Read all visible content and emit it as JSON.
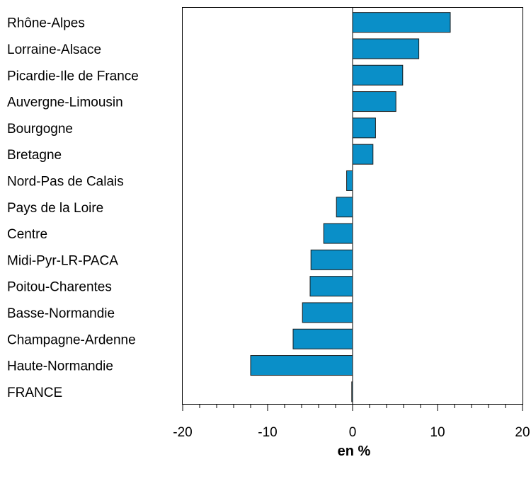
{
  "chart_data": {
    "type": "bar",
    "orientation": "horizontal",
    "categories": [
      "Rhône-Alpes",
      "Lorraine-Alsace",
      "Picardie-Ile de France",
      "Auvergne-Limousin",
      "Bourgogne",
      "Bretagne",
      "Nord-Pas de Calais",
      "Pays de la Loire",
      "Centre",
      "Midi-Pyr-LR-PACA",
      "Poitou-Charentes",
      "Basse-Normandie",
      "Champagne-Ardenne",
      "Haute-Normandie",
      "FRANCE"
    ],
    "values": [
      11.5,
      7.8,
      5.9,
      5.1,
      2.7,
      2.4,
      -0.7,
      -1.9,
      -3.4,
      -4.9,
      -5.0,
      -5.9,
      -7.0,
      -12.0,
      -0.1
    ],
    "title": "",
    "xlabel": "en %",
    "ylabel": "",
    "xlim": [
      -20,
      20
    ],
    "xticks": [
      -20,
      -10,
      0,
      10,
      20
    ],
    "minor_tick_step": 2,
    "grid": false,
    "legend": "none",
    "colors": {
      "bar_fill": "#0A8FC8",
      "bar_stroke": "#1a1a1a",
      "axis": "#000000"
    }
  }
}
